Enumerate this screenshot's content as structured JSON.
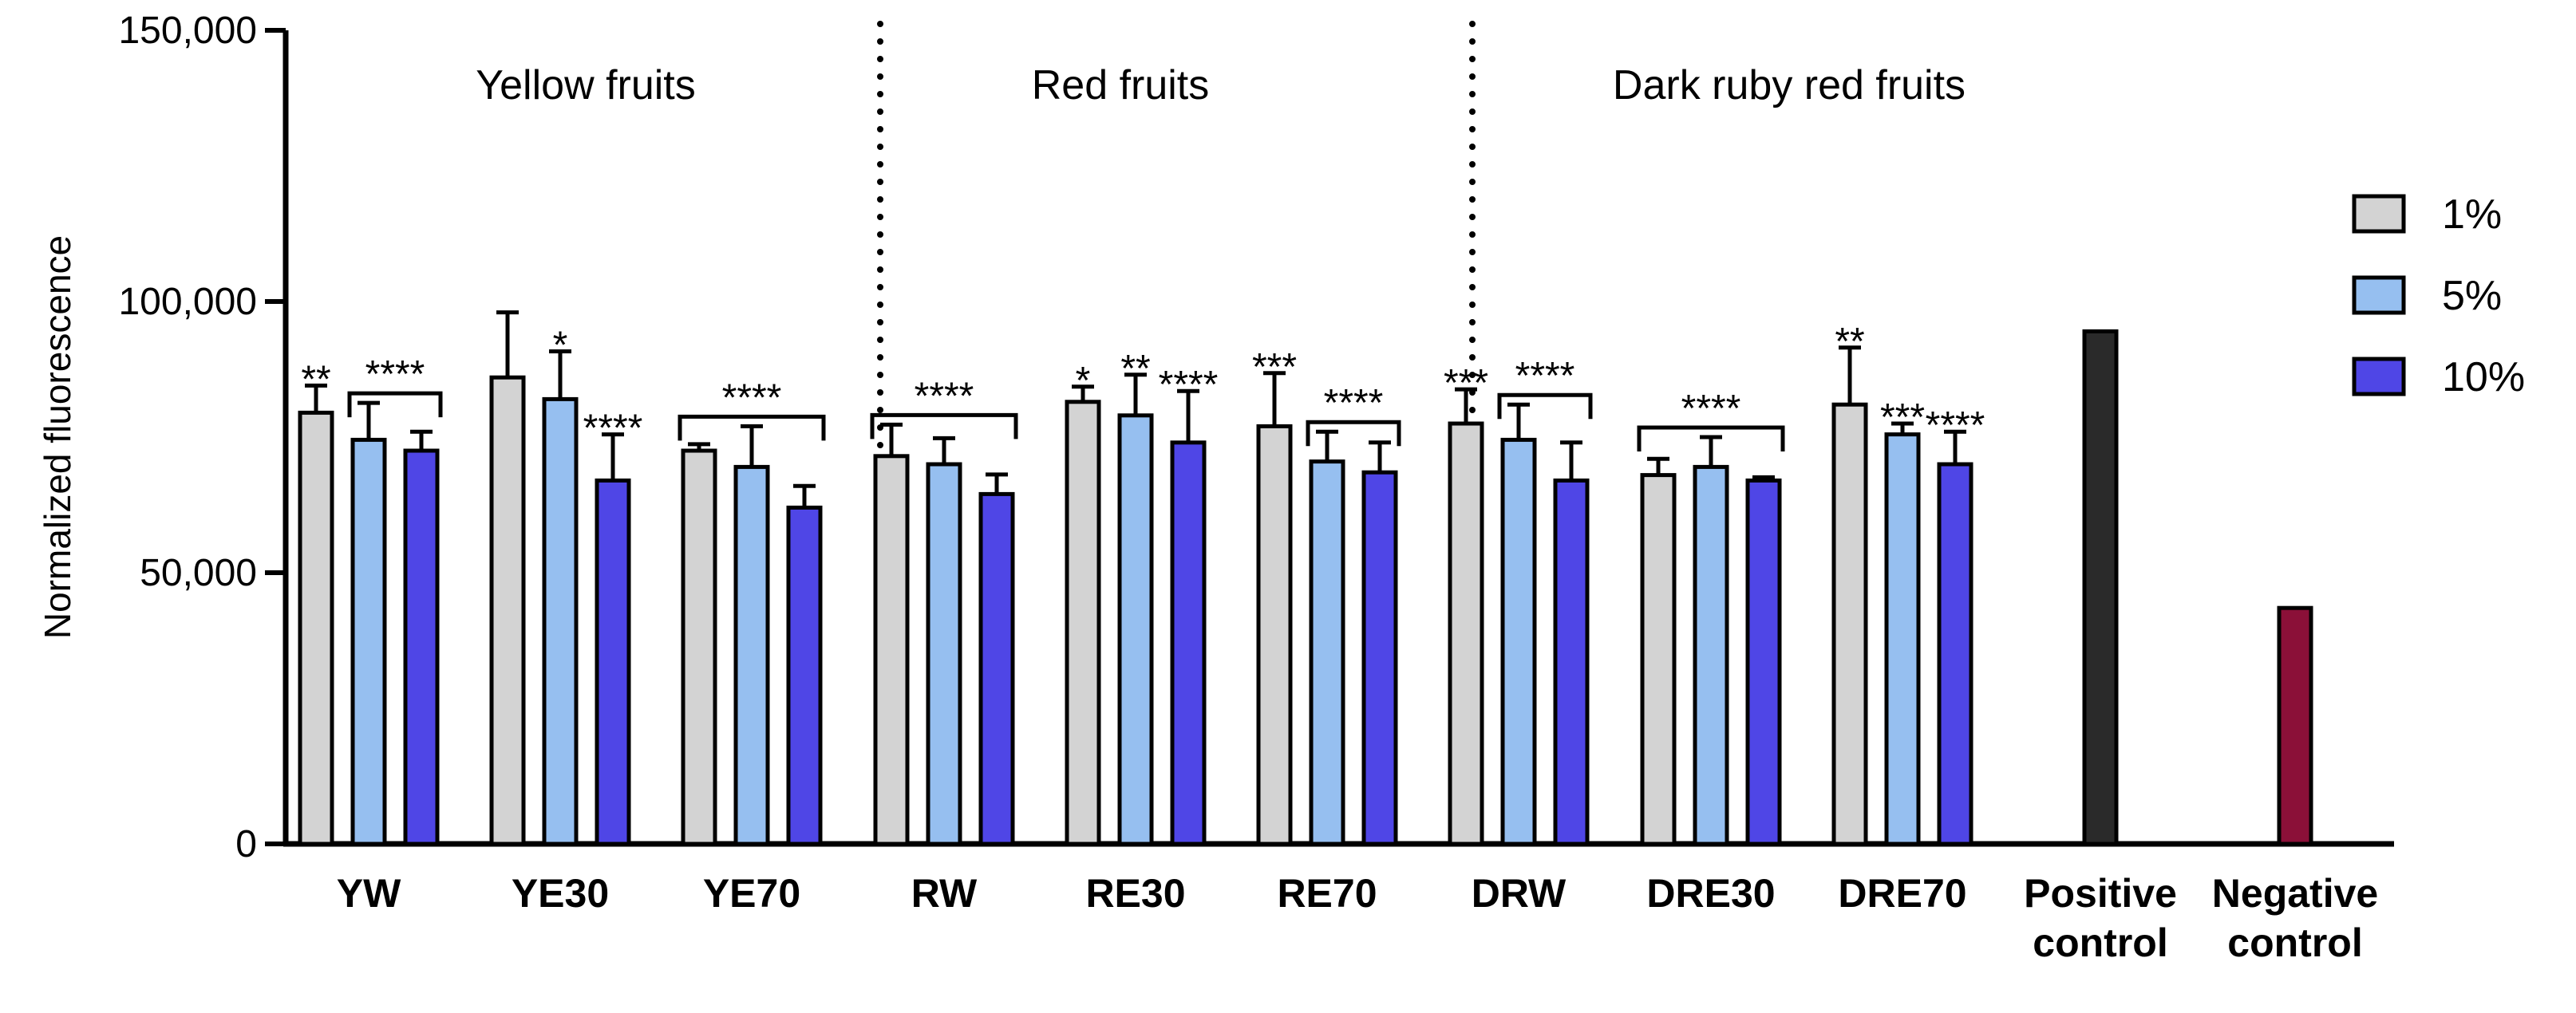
{
  "chart_data": {
    "type": "bar",
    "ylabel": "Normalized fluorescence",
    "xlabel": "",
    "ylim": [
      0,
      150000
    ],
    "yticks": [
      0,
      50000,
      100000,
      150000
    ],
    "ytick_labels": [
      "0",
      "50,000",
      "100,000",
      "150,000"
    ],
    "group_labels": [
      "Yellow fruits",
      "Red fruits",
      "Dark ruby red fruits"
    ],
    "legend": [
      {
        "name": "1%",
        "color": "#d3d3d3"
      },
      {
        "name": "5%",
        "color": "#96bff0"
      },
      {
        "name": "10%",
        "color": "#4f46e6"
      }
    ],
    "categories": [
      {
        "label": [
          "YW"
        ],
        "bars": [
          {
            "series": "1%",
            "value": 79500,
            "err": 5000,
            "sig": "**"
          },
          {
            "series": "5%",
            "value": 74500,
            "err": 6800
          },
          {
            "series": "10%",
            "value": 72500,
            "err": 3500
          }
        ],
        "bracket": {
          "from": 1,
          "to": 2,
          "label": "****"
        }
      },
      {
        "label": [
          "YE30"
        ],
        "bars": [
          {
            "series": "1%",
            "value": 86000,
            "err": 12000
          },
          {
            "series": "5%",
            "value": 82000,
            "err": 8800,
            "sig": "*"
          },
          {
            "series": "10%",
            "value": 67000,
            "err": 8500,
            "sig": "****"
          }
        ]
      },
      {
        "label": [
          "YE70"
        ],
        "bars": [
          {
            "series": "1%",
            "value": 72500,
            "err": 1200
          },
          {
            "series": "5%",
            "value": 69500,
            "err": 7500
          },
          {
            "series": "10%",
            "value": 62000,
            "err": 4000
          }
        ],
        "bracket": {
          "from": 0,
          "to": 2,
          "label": "****"
        }
      },
      {
        "label": [
          "RW"
        ],
        "bars": [
          {
            "series": "1%",
            "value": 71500,
            "err": 5800
          },
          {
            "series": "5%",
            "value": 70000,
            "err": 4800
          },
          {
            "series": "10%",
            "value": 64500,
            "err": 3600
          }
        ],
        "bracket": {
          "from": 0,
          "to": 2,
          "label": "****"
        }
      },
      {
        "label": [
          "RE30"
        ],
        "bars": [
          {
            "series": "1%",
            "value": 81500,
            "err": 2800,
            "sig": "*"
          },
          {
            "series": "5%",
            "value": 79000,
            "err": 7500,
            "sig": "**"
          },
          {
            "series": "10%",
            "value": 74000,
            "err": 9500,
            "sig": "****"
          }
        ]
      },
      {
        "label": [
          "RE70"
        ],
        "bars": [
          {
            "series": "1%",
            "value": 77000,
            "err": 9800,
            "sig": "***"
          },
          {
            "series": "5%",
            "value": 70500,
            "err": 5500
          },
          {
            "series": "10%",
            "value": 68500,
            "err": 5500
          }
        ],
        "bracket": {
          "from": 1,
          "to": 2,
          "label": "****"
        }
      },
      {
        "label": [
          "DRW"
        ],
        "bars": [
          {
            "series": "1%",
            "value": 77500,
            "err": 6300,
            "sig": "***"
          },
          {
            "series": "5%",
            "value": 74500,
            "err": 6500
          },
          {
            "series": "10%",
            "value": 67000,
            "err": 7000
          }
        ],
        "bracket": {
          "from": 1,
          "to": 2,
          "label": "****"
        }
      },
      {
        "label": [
          "DRE30"
        ],
        "bars": [
          {
            "series": "1%",
            "value": 68000,
            "err": 3000
          },
          {
            "series": "5%",
            "value": 69500,
            "err": 5500
          },
          {
            "series": "10%",
            "value": 67000,
            "err": 600
          }
        ],
        "bracket": {
          "from": 0,
          "to": 2,
          "label": "****"
        }
      },
      {
        "label": [
          "DRE70"
        ],
        "bars": [
          {
            "series": "1%",
            "value": 81000,
            "err": 10500,
            "sig": "**"
          },
          {
            "series": "5%",
            "value": 75500,
            "err": 2000,
            "sig": "***"
          },
          {
            "series": "10%",
            "value": 70000,
            "err": 6000,
            "sig": "****"
          }
        ]
      },
      {
        "label": [
          "Positive",
          "control"
        ],
        "bars": [
          {
            "series": "Positive control",
            "value": 94500,
            "color": "#2a2a2a"
          }
        ]
      },
      {
        "label": [
          "Negative",
          "control"
        ],
        "bars": [
          {
            "series": "Negative control",
            "value": 43500,
            "color": "#8b1038"
          }
        ]
      }
    ]
  }
}
